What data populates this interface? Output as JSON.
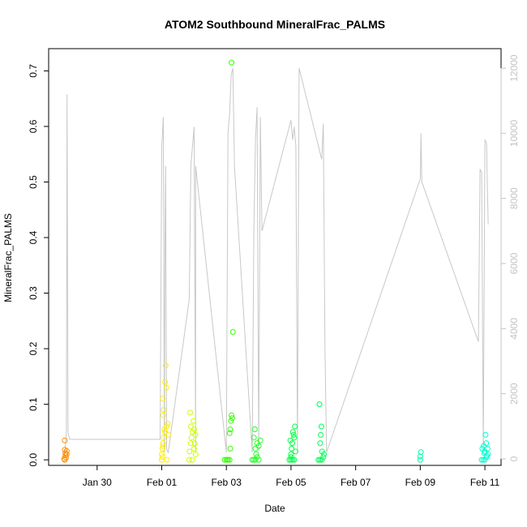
{
  "chart_data": {
    "type": "scatter",
    "title": "ATOM2 Southbound MineralFrac_PALMS",
    "xlabel": "Date",
    "ylabel": "MineralFrac_PALMS",
    "x_tick_labels": [
      "Jan 30",
      "Feb 01",
      "Feb 03",
      "Feb 05",
      "Feb 07",
      "Feb 09",
      "Feb 11"
    ],
    "x_tick_values": [
      30,
      32,
      34,
      36,
      38,
      40,
      42
    ],
    "xlim": [
      28.5,
      42.5
    ],
    "ylim": [
      -0.01,
      0.74
    ],
    "y_ticks": [
      0.0,
      0.1,
      0.2,
      0.3,
      0.4,
      0.5,
      0.6,
      0.7
    ],
    "y_tick_labels": [
      "0.0",
      "0.1",
      "0.2",
      "0.3",
      "0.4",
      "0.5",
      "0.6",
      "0.7"
    ],
    "y2lim": [
      -200,
      12600
    ],
    "y2_ticks": [
      0,
      2000,
      4000,
      6000,
      8000,
      10000,
      12000
    ],
    "y2_tick_labels": [
      "0",
      "2000",
      "4000",
      "6000",
      "8000",
      "10000",
      "12000"
    ],
    "y2_color": "#c4c4c4",
    "altitude_line_color": "#c8c8c8",
    "groups": [
      {
        "color": "#ff8c00",
        "points": [
          [
            29.0,
            0.035
          ],
          [
            29.0,
            0.018
          ],
          [
            29.02,
            0.012
          ],
          [
            29.02,
            0.008
          ],
          [
            29.04,
            0.004
          ],
          [
            28.98,
            0.002
          ],
          [
            29.06,
            0.01
          ],
          [
            29.06,
            0.016
          ],
          [
            29.0,
            0.0
          ]
        ]
      },
      {
        "color": "#ffee00",
        "points": [
          [
            32.0,
            0.0
          ],
          [
            32.02,
            0.02
          ],
          [
            32.04,
            0.03
          ],
          [
            32.06,
            0.04
          ],
          [
            32.1,
            0.05
          ],
          [
            32.15,
            0.06
          ],
          [
            32.18,
            0.065
          ],
          [
            32.1,
            0.14
          ],
          [
            32.12,
            0.17
          ],
          [
            32.14,
            0.13
          ],
          [
            32.06,
            0.09
          ],
          [
            32.05,
            0.08
          ],
          [
            32.08,
            0.055
          ],
          [
            32.0,
            0.01
          ],
          [
            32.02,
            0.005
          ],
          [
            32.16,
            0.0
          ],
          [
            32.2,
            0.045
          ],
          [
            32.03,
            0.11
          ],
          [
            32.04,
            0.025
          ]
        ]
      },
      {
        "color": "#ccff00",
        "points": [
          [
            32.85,
            0.0
          ],
          [
            32.9,
            0.03
          ],
          [
            32.92,
            0.04
          ],
          [
            32.95,
            0.05
          ],
          [
            32.9,
            0.06
          ],
          [
            33.0,
            0.02
          ],
          [
            33.02,
            0.03
          ],
          [
            32.88,
            0.085
          ],
          [
            32.98,
            0.07
          ],
          [
            33.05,
            0.01
          ],
          [
            33.04,
            0.045
          ],
          [
            32.94,
            0.0
          ],
          [
            33.0,
            0.055
          ],
          [
            32.86,
            0.015
          ]
        ]
      },
      {
        "color": "#33ff00",
        "points": [
          [
            33.95,
            0.0
          ],
          [
            34.0,
            0.0
          ],
          [
            34.05,
            0.0
          ],
          [
            34.1,
            0.0
          ],
          [
            34.12,
            0.02
          ],
          [
            34.1,
            0.048
          ],
          [
            34.12,
            0.055
          ],
          [
            34.14,
            0.07
          ],
          [
            34.16,
            0.08
          ],
          [
            34.18,
            0.075
          ],
          [
            34.2,
            0.23
          ],
          [
            34.16,
            0.715
          ],
          [
            34.04,
            0.0
          ]
        ]
      },
      {
        "color": "#22ff22",
        "points": [
          [
            34.8,
            0.0
          ],
          [
            34.85,
            0.0
          ],
          [
            34.9,
            0.0
          ],
          [
            34.95,
            0.005
          ],
          [
            35.0,
            0.0
          ],
          [
            34.85,
            0.04
          ],
          [
            34.88,
            0.055
          ],
          [
            34.95,
            0.03
          ],
          [
            35.0,
            0.025
          ],
          [
            35.05,
            0.035
          ],
          [
            34.9,
            0.02
          ],
          [
            34.92,
            0.01
          ]
        ]
      },
      {
        "color": "#00ff44",
        "points": [
          [
            35.95,
            0.0
          ],
          [
            36.0,
            0.0
          ],
          [
            36.05,
            0.0
          ],
          [
            36.1,
            0.0
          ],
          [
            36.0,
            0.01
          ],
          [
            36.02,
            0.02
          ],
          [
            36.04,
            0.03
          ],
          [
            36.06,
            0.05
          ],
          [
            36.08,
            0.045
          ],
          [
            36.1,
            0.04
          ],
          [
            36.12,
            0.06
          ],
          [
            36.0,
            0.005
          ],
          [
            35.98,
            0.035
          ],
          [
            36.14,
            0.015
          ]
        ]
      },
      {
        "color": "#00ff55",
        "points": [
          [
            36.85,
            0.0
          ],
          [
            36.9,
            0.0
          ],
          [
            36.95,
            0.0
          ],
          [
            37.0,
            0.005
          ],
          [
            37.02,
            0.01
          ],
          [
            36.9,
            0.03
          ],
          [
            36.92,
            0.045
          ],
          [
            36.94,
            0.06
          ],
          [
            36.88,
            0.1
          ],
          [
            36.96,
            0.015
          ]
        ]
      },
      {
        "color": "#00ffaa",
        "points": [
          [
            40.0,
            0.0
          ],
          [
            40.0,
            0.006
          ],
          [
            40.02,
            0.014
          ]
        ]
      },
      {
        "color": "#00ffcc",
        "points": [
          [
            41.9,
            0.0
          ],
          [
            41.95,
            0.0
          ],
          [
            42.0,
            0.0
          ],
          [
            42.05,
            0.005
          ],
          [
            42.1,
            0.01
          ],
          [
            41.92,
            0.02
          ],
          [
            41.96,
            0.025
          ],
          [
            42.0,
            0.015
          ],
          [
            42.02,
            0.045
          ],
          [
            42.04,
            0.03
          ],
          [
            42.08,
            0.02
          ],
          [
            41.98,
            0.012
          ],
          [
            42.06,
            0.008
          ]
        ]
      }
    ],
    "altitude_series": [
      [
        29.0,
        100
      ],
      [
        29.05,
        900
      ],
      [
        29.07,
        11200
      ],
      [
        29.1,
        800
      ],
      [
        29.15,
        600
      ],
      [
        31.95,
        600
      ],
      [
        32.0,
        9600
      ],
      [
        32.05,
        10500
      ],
      [
        32.08,
        200
      ],
      [
        32.1,
        6500
      ],
      [
        32.12,
        9000
      ],
      [
        32.15,
        300
      ],
      [
        32.2,
        200
      ],
      [
        32.85,
        4900
      ],
      [
        32.9,
        9000
      ],
      [
        32.95,
        9600
      ],
      [
        33.0,
        10200
      ],
      [
        33.05,
        200
      ],
      [
        33.05,
        9000
      ],
      [
        34.0,
        200
      ],
      [
        34.05,
        10000
      ],
      [
        34.1,
        10600
      ],
      [
        34.15,
        11800
      ],
      [
        34.2,
        12000
      ],
      [
        34.25,
        9000
      ],
      [
        34.8,
        200
      ],
      [
        34.85,
        7000
      ],
      [
        34.9,
        9800
      ],
      [
        34.95,
        10800
      ],
      [
        35.0,
        200
      ],
      [
        35.05,
        10500
      ],
      [
        35.1,
        7000
      ],
      [
        36.0,
        10400
      ],
      [
        36.05,
        9800
      ],
      [
        36.1,
        10200
      ],
      [
        36.15,
        9600
      ],
      [
        36.2,
        200
      ],
      [
        36.25,
        12000
      ],
      [
        36.95,
        9200
      ],
      [
        37.0,
        10300
      ],
      [
        37.05,
        3400
      ],
      [
        37.1,
        200
      ],
      [
        40.0,
        8600
      ],
      [
        40.02,
        10000
      ],
      [
        40.05,
        8500
      ],
      [
        41.8,
        3600
      ],
      [
        41.85,
        8900
      ],
      [
        41.9,
        8800
      ],
      [
        41.95,
        200
      ],
      [
        42.0,
        9800
      ],
      [
        42.05,
        9700
      ],
      [
        42.1,
        7200
      ]
    ]
  }
}
